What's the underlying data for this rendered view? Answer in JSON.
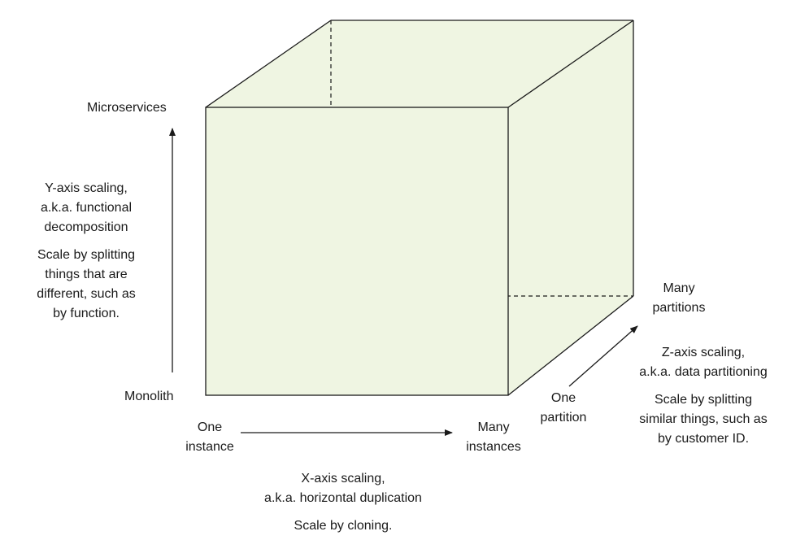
{
  "colors": {
    "cube_fill": "#eff5e2",
    "line": "#1a1a1a",
    "text": "#1a1a1a"
  },
  "y_axis": {
    "top_label": "Microservices",
    "bottom_label": "Monolith",
    "title_lines": [
      "Y-axis scaling,",
      "a.k.a. functional",
      "decomposition"
    ],
    "desc_lines": [
      "Scale by splitting",
      "things that are",
      "different, such as",
      "by function."
    ]
  },
  "x_axis": {
    "start_lines": [
      "One",
      "instance"
    ],
    "end_lines": [
      "Many",
      "instances"
    ],
    "title_lines": [
      "X-axis scaling,",
      "a.k.a. horizontal duplication"
    ],
    "desc_lines": [
      "Scale by cloning."
    ]
  },
  "z_axis": {
    "start_lines": [
      "One",
      "partition"
    ],
    "end_lines": [
      "Many",
      "partitions"
    ],
    "title_lines": [
      "Z-axis scaling,",
      "a.k.a. data partitioning"
    ],
    "desc_lines": [
      "Scale by splitting",
      "similar things, such as",
      "by customer ID."
    ]
  }
}
